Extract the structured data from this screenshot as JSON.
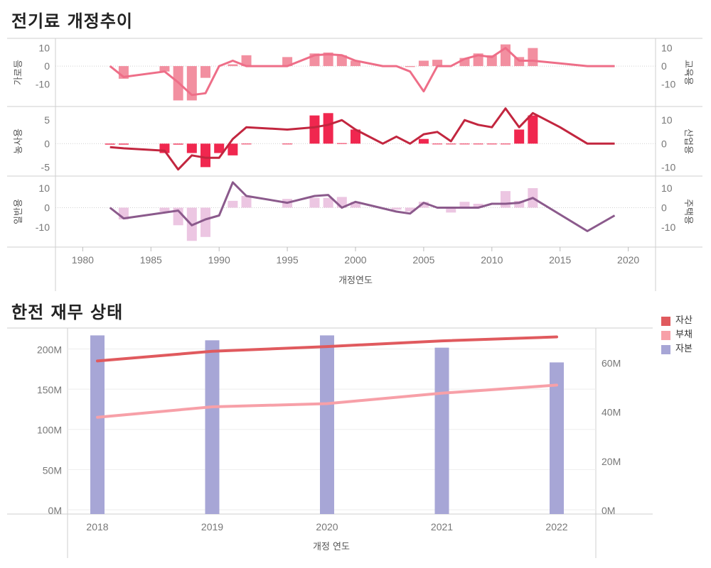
{
  "titles": {
    "top": "전기료 개정추이",
    "bottom": "한전 재무 상태"
  },
  "chart_data": [
    {
      "type": "bar+line",
      "title": "전기료 개정추이",
      "xlabel": "개정연도",
      "xlim": [
        1978,
        2022
      ],
      "x_ticks": [
        1980,
        1985,
        1990,
        1995,
        2000,
        2005,
        2010,
        2015,
        2020
      ],
      "panels": [
        {
          "left_label": "가로등",
          "right_label": "교육용",
          "left_ticks": [
            10,
            0,
            -10
          ],
          "right_ticks": [
            10,
            0,
            -10
          ],
          "left_range": [
            -20,
            13
          ],
          "right_range": [
            -20,
            13
          ],
          "bar_color": "#f28fa0",
          "line_color": "#ee6e88",
          "bars": [
            [
              1983,
              -7
            ],
            [
              1986,
              -3
            ],
            [
              1987,
              -19
            ],
            [
              1988,
              -19
            ],
            [
              1989,
              -6.5
            ],
            [
              1991,
              1
            ],
            [
              1992,
              6
            ],
            [
              1995,
              5
            ],
            [
              1997,
              7
            ],
            [
              1998,
              7.5
            ],
            [
              1999,
              6
            ],
            [
              2000,
              3
            ],
            [
              2004,
              -0.5
            ],
            [
              2005,
              3
            ],
            [
              2006,
              3.5
            ],
            [
              2008,
              4.5
            ],
            [
              2009,
              7
            ],
            [
              2010,
              6
            ],
            [
              2011,
              12
            ],
            [
              2012,
              5
            ],
            [
              2013,
              10
            ]
          ],
          "line": [
            [
              1982,
              0
            ],
            [
              1983,
              -6
            ],
            [
              1986,
              -3
            ],
            [
              1987,
              -9
            ],
            [
              1988,
              -16
            ],
            [
              1989,
              -15
            ],
            [
              1990,
              0
            ],
            [
              1991,
              3
            ],
            [
              1992,
              0
            ],
            [
              1995,
              0
            ],
            [
              1997,
              6
            ],
            [
              1998,
              6.5
            ],
            [
              1999,
              6
            ],
            [
              2000,
              3
            ],
            [
              2002,
              0
            ],
            [
              2003,
              0
            ],
            [
              2004,
              -3
            ],
            [
              2005,
              -14
            ],
            [
              2006,
              0
            ],
            [
              2007,
              0
            ],
            [
              2008,
              4
            ],
            [
              2009,
              6
            ],
            [
              2010,
              5
            ],
            [
              2011,
              10
            ],
            [
              2012,
              3
            ],
            [
              2013,
              3
            ],
            [
              2015,
              1.5
            ],
            [
              2017,
              0
            ],
            [
              2019,
              0
            ]
          ]
        },
        {
          "left_label": "농사용",
          "right_label": "산업용",
          "left_ticks": [
            5,
            0,
            -5
          ],
          "right_ticks": [
            10,
            0,
            -10
          ],
          "left_range": [
            -6,
            7
          ],
          "right_range": [
            -12,
            14
          ],
          "bar_color": "#f0274f",
          "line_color": "#c2263f",
          "bars": [
            [
              1982,
              -0.2
            ],
            [
              1983,
              -0.2
            ],
            [
              1986,
              -2
            ],
            [
              1987,
              -0.2
            ],
            [
              1988,
              -2
            ],
            [
              1989,
              -5
            ],
            [
              1990,
              -2
            ],
            [
              1991,
              -2.5
            ],
            [
              1992,
              -0.1
            ],
            [
              1995,
              -0.1
            ],
            [
              1997,
              6
            ],
            [
              1998,
              6.5
            ],
            [
              1999,
              0.1
            ],
            [
              2000,
              3
            ],
            [
              2005,
              1
            ],
            [
              2006,
              -0.1
            ],
            [
              2007,
              -0.1
            ],
            [
              2008,
              -0.1
            ],
            [
              2009,
              -0.1
            ],
            [
              2010,
              -0.1
            ],
            [
              2011,
              -0.1
            ],
            [
              2012,
              3
            ],
            [
              2013,
              6
            ]
          ],
          "line": [
            [
              1982,
              -1.5
            ],
            [
              1983,
              -2
            ],
            [
              1986,
              -3
            ],
            [
              1987,
              -11
            ],
            [
              1988,
              -5
            ],
            [
              1989,
              -6
            ],
            [
              1990,
              -6
            ],
            [
              1991,
              2
            ],
            [
              1992,
              7
            ],
            [
              1995,
              6
            ],
            [
              1997,
              7
            ],
            [
              1998,
              8
            ],
            [
              1999,
              10
            ],
            [
              2000,
              6
            ],
            [
              2002,
              0
            ],
            [
              2003,
              3
            ],
            [
              2004,
              0
            ],
            [
              2005,
              4
            ],
            [
              2006,
              5
            ],
            [
              2007,
              1
            ],
            [
              2008,
              10
            ],
            [
              2009,
              8
            ],
            [
              2010,
              7
            ],
            [
              2011,
              15
            ],
            [
              2012,
              7
            ],
            [
              2013,
              13
            ],
            [
              2015,
              7
            ],
            [
              2017,
              0
            ],
            [
              2019,
              0
            ]
          ]
        },
        {
          "left_label": "일반용",
          "right_label": "주택용",
          "left_ticks": [
            10,
            0,
            -10
          ],
          "right_ticks": [
            10,
            0,
            -10
          ],
          "left_range": [
            -18,
            14
          ],
          "right_range": [
            -18,
            14
          ],
          "bar_color": "#ecc6e2",
          "line_color": "#8b5a8c",
          "bars": [
            [
              1983,
              -6
            ],
            [
              1986,
              -2
            ],
            [
              1987,
              -9
            ],
            [
              1988,
              -17
            ],
            [
              1989,
              -15
            ],
            [
              1991,
              3.5
            ],
            [
              1992,
              6
            ],
            [
              1995,
              4.5
            ],
            [
              1997,
              5
            ],
            [
              1998,
              5
            ],
            [
              1999,
              5.5
            ],
            [
              2000,
              3
            ],
            [
              2003,
              -1
            ],
            [
              2004,
              -2
            ],
            [
              2005,
              3
            ],
            [
              2007,
              -2.5
            ],
            [
              2008,
              3
            ],
            [
              2009,
              2
            ],
            [
              2011,
              8.5
            ],
            [
              2012,
              3.5
            ],
            [
              2013,
              10
            ]
          ],
          "line": [
            [
              1982,
              0
            ],
            [
              1983,
              -5.5
            ],
            [
              1986,
              -2.5
            ],
            [
              1987,
              -1.5
            ],
            [
              1988,
              -9
            ],
            [
              1989,
              -6
            ],
            [
              1990,
              -4
            ],
            [
              1991,
              13
            ],
            [
              1992,
              6
            ],
            [
              1995,
              2.5
            ],
            [
              1997,
              6
            ],
            [
              1998,
              6.5
            ],
            [
              1999,
              0
            ],
            [
              2000,
              3
            ],
            [
              2003,
              -2
            ],
            [
              2004,
              -3
            ],
            [
              2005,
              2.5
            ],
            [
              2006,
              0
            ],
            [
              2009,
              0
            ],
            [
              2010,
              2
            ],
            [
              2011,
              2
            ],
            [
              2012,
              2.5
            ],
            [
              2013,
              5
            ],
            [
              2017,
              -12
            ],
            [
              2019,
              -4
            ]
          ]
        }
      ]
    },
    {
      "type": "bar+line",
      "title": "한전 재무 상태",
      "xlabel": "개정 연도",
      "categories": [
        "2018",
        "2019",
        "2020",
        "2021",
        "2022"
      ],
      "left_ticks": [
        "200M",
        "150M",
        "100M",
        "50M",
        "0M"
      ],
      "left_tick_values": [
        200,
        150,
        100,
        50,
        0
      ],
      "left_range_M": [
        0,
        226
      ],
      "right_ticks": [
        "60M",
        "40M",
        "20M",
        "0M"
      ],
      "right_tick_values": [
        60,
        40,
        20,
        0
      ],
      "right_range_M": [
        0,
        74
      ],
      "legend_position": "right",
      "series": [
        {
          "name": "자산",
          "type": "line",
          "axis": "left",
          "color": "#e05a5e",
          "values": [
            185,
            197,
            203,
            210,
            215
          ]
        },
        {
          "name": "부채",
          "type": "line",
          "axis": "left",
          "color": "#f7a0a8",
          "values": [
            115,
            128,
            132,
            145,
            155
          ]
        },
        {
          "name": "자본",
          "type": "bar",
          "axis": "right",
          "color": "#a7a6d6",
          "values": [
            71,
            69,
            71,
            66,
            60
          ]
        }
      ]
    }
  ]
}
